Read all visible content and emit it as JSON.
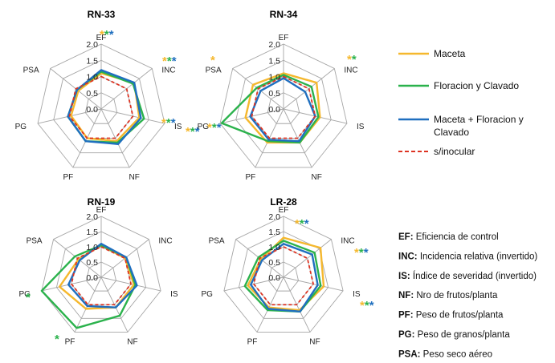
{
  "colors": {
    "maceta": "#f5b82e",
    "floracion": "#2bb24c",
    "ambos": "#1f6fbf",
    "sinoc": "#dd3322",
    "grid": "#a6a6a6"
  },
  "axes": [
    "EF",
    "INC",
    "IS",
    "NF",
    "PF",
    "PG",
    "PSA"
  ],
  "ticks": [
    "2.0",
    "1.5",
    "1.0",
    "0.5",
    "0.0"
  ],
  "legend": [
    {
      "key": "maceta",
      "label": "Maceta"
    },
    {
      "key": "floracion",
      "label": "Floracion y Clavado"
    },
    {
      "key": "ambos",
      "label": "Maceta + Floracion y Clavado"
    },
    {
      "key": "sinoc",
      "label": "s/inocular"
    }
  ],
  "abbreviations": [
    {
      "code": "EF:",
      "text": "Eficiencia de control"
    },
    {
      "code": "INC:",
      "text": "Incidencia relativa (invertido)"
    },
    {
      "code": "IS:",
      "text": "Índice de severidad (invertido)"
    },
    {
      "code": "NF:",
      "text": "Nro de frutos/planta"
    },
    {
      "code": "PF:",
      "text": "Peso de frutos/planta"
    },
    {
      "code": "PG:",
      "text": "Peso de granos/planta"
    },
    {
      "code": "PSA:",
      "text": "Peso seco  aéreo"
    }
  ],
  "chart_data": [
    {
      "type": "radar",
      "title": "RN-33",
      "rlim": [
        0,
        2
      ],
      "categories": [
        "EF",
        "INC",
        "IS",
        "NF",
        "PF",
        "PG",
        "PSA"
      ],
      "series": [
        {
          "name": "Maceta",
          "values": [
            1.1,
            1.3,
            1.2,
            1.1,
            1.0,
            0.95,
            0.9
          ]
        },
        {
          "name": "Floracion y Clavado",
          "values": [
            1.15,
            1.25,
            1.35,
            1.15,
            1.1,
            1.05,
            0.95
          ]
        },
        {
          "name": "Maceta + Floracion y Clavado",
          "values": [
            1.2,
            1.3,
            1.25,
            1.2,
            1.1,
            1.05,
            0.95
          ]
        },
        {
          "name": "s/inocular",
          "values": [
            1.0,
            1.0,
            1.0,
            1.0,
            1.0,
            1.0,
            1.0
          ]
        }
      ],
      "significance": [
        {
          "axis": "EF",
          "stars": [
            "maceta",
            "floracion",
            "ambos"
          ]
        },
        {
          "axis": "INC",
          "stars": [
            "maceta",
            "floracion",
            "ambos"
          ]
        },
        {
          "axis": "IS",
          "stars": [
            "maceta",
            "floracion",
            "ambos"
          ]
        },
        {
          "axis": "IS",
          "stars": [
            "maceta",
            "floracion",
            "ambos"
          ]
        }
      ]
    },
    {
      "type": "radar",
      "title": "RN-34",
      "rlim": [
        0,
        2
      ],
      "categories": [
        "EF",
        "INC",
        "IS",
        "NF",
        "PF",
        "PG",
        "PSA"
      ],
      "series": [
        {
          "name": "Maceta",
          "values": [
            1.1,
            1.3,
            1.15,
            1.15,
            1.15,
            1.2,
            1.2
          ]
        },
        {
          "name": "Floracion y Clavado",
          "values": [
            1.05,
            1.1,
            1.1,
            1.15,
            1.1,
            1.95,
            1.05
          ]
        },
        {
          "name": "Maceta + Floracion y Clavado",
          "values": [
            0.95,
            0.85,
            1.0,
            1.1,
            1.05,
            1.05,
            0.9
          ]
        },
        {
          "name": "s/inocular",
          "values": [
            1.0,
            1.0,
            1.0,
            1.0,
            1.0,
            1.0,
            1.0
          ]
        }
      ],
      "significance": [
        {
          "axis": "INC",
          "stars": [
            "maceta",
            "floracion"
          ]
        },
        {
          "axis": "PSA",
          "stars": [
            "maceta"
          ]
        },
        {
          "axis": "PG",
          "stars": [
            "maceta",
            "floracion",
            "ambos"
          ]
        }
      ]
    },
    {
      "type": "radar",
      "title": "RN-19",
      "rlim": [
        0,
        2
      ],
      "categories": [
        "EF",
        "INC",
        "IS",
        "NF",
        "PF",
        "PG",
        "PSA"
      ],
      "series": [
        {
          "name": "Maceta",
          "values": [
            1.05,
            1.0,
            1.1,
            1.1,
            1.15,
            1.4,
            0.95
          ]
        },
        {
          "name": "Floracion y Clavado",
          "values": [
            1.05,
            1.05,
            1.15,
            1.4,
            1.85,
            2.0,
            1.1
          ]
        },
        {
          "name": "Maceta + Floracion y Clavado",
          "values": [
            1.1,
            1.05,
            1.2,
            1.1,
            1.05,
            1.1,
            0.9
          ]
        },
        {
          "name": "s/inocular",
          "values": [
            1.0,
            1.0,
            1.0,
            1.0,
            1.0,
            1.0,
            1.0
          ]
        }
      ],
      "significance": [
        {
          "axis": "PG",
          "stars": [
            "floracion"
          ]
        },
        {
          "axis": "PF",
          "stars": [
            "floracion"
          ]
        }
      ]
    },
    {
      "type": "radar",
      "title": "LR-28",
      "rlim": [
        0,
        2
      ],
      "categories": [
        "EF",
        "INC",
        "IS",
        "NF",
        "PF",
        "PG",
        "PSA"
      ],
      "series": [
        {
          "name": "Maceta",
          "values": [
            1.3,
            1.55,
            1.35,
            1.2,
            1.1,
            1.2,
            0.95
          ]
        },
        {
          "name": "Floracion y Clavado",
          "values": [
            1.2,
            1.3,
            1.25,
            1.25,
            1.2,
            1.3,
            1.05
          ]
        },
        {
          "name": "Maceta + Floracion y Clavado",
          "values": [
            1.1,
            1.2,
            1.15,
            1.25,
            1.15,
            1.1,
            0.9
          ]
        },
        {
          "name": "s/inocular",
          "values": [
            1.0,
            1.0,
            1.0,
            1.0,
            1.0,
            1.0,
            1.0
          ]
        }
      ],
      "significance": [
        {
          "axis": "EF",
          "stars": [
            "maceta",
            "floracion",
            "ambos"
          ]
        },
        {
          "axis": "INC",
          "stars": [
            "maceta",
            "floracion",
            "ambos"
          ]
        },
        {
          "axis": "IS",
          "stars": [
            "maceta",
            "floracion",
            "ambos"
          ]
        }
      ]
    }
  ]
}
